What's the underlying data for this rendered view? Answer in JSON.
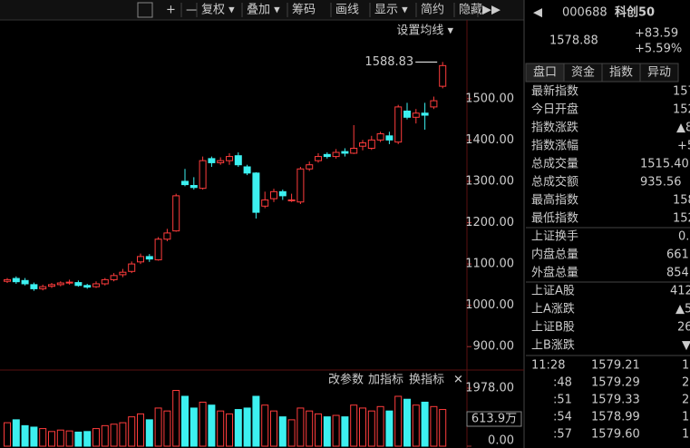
{
  "toolbar": {
    "items": [
      "+",
      "—",
      "复权 ▾",
      "叠加 ▾",
      "筹码",
      "画线",
      "显示 ▾",
      "简约",
      "隐藏",
      "▶▶"
    ]
  },
  "chart_data": {
    "type": "candlestick",
    "settings_label": "设置均线 ▾",
    "peak_label": 1588.83,
    "up_color": "#ff3c3c",
    "down_color": "#3cf0f0",
    "open": [
      1058,
      1065,
      1060,
      1050,
      1040,
      1046,
      1050,
      1054,
      1055,
      1048,
      1045,
      1052,
      1062,
      1074,
      1082,
      1105,
      1118,
      1110,
      1160,
      1180,
      1300,
      1290,
      1283,
      1355,
      1345,
      1350,
      1362,
      1335,
      1320,
      1240,
      1258,
      1275,
      1255,
      1250,
      1330,
      1350,
      1365,
      1360,
      1372,
      1368,
      1385,
      1380,
      1400,
      1410,
      1395,
      1470,
      1455,
      1465,
      1480,
      1530
    ],
    "high": [
      1066,
      1070,
      1066,
      1055,
      1050,
      1054,
      1058,
      1062,
      1060,
      1052,
      1058,
      1066,
      1078,
      1088,
      1106,
      1125,
      1124,
      1165,
      1185,
      1270,
      1330,
      1310,
      1360,
      1360,
      1358,
      1368,
      1370,
      1340,
      1322,
      1275,
      1282,
      1280,
      1270,
      1335,
      1348,
      1368,
      1370,
      1378,
      1380,
      1436,
      1400,
      1410,
      1420,
      1420,
      1485,
      1490,
      1475,
      1490,
      1505,
      1588.83
    ],
    "low": [
      1054,
      1052,
      1048,
      1035,
      1036,
      1042,
      1046,
      1050,
      1045,
      1040,
      1042,
      1048,
      1058,
      1068,
      1078,
      1100,
      1105,
      1108,
      1155,
      1178,
      1288,
      1280,
      1280,
      1335,
      1340,
      1340,
      1335,
      1315,
      1210,
      1235,
      1250,
      1255,
      1250,
      1245,
      1325,
      1345,
      1355,
      1355,
      1360,
      1366,
      1375,
      1376,
      1395,
      1390,
      1390,
      1450,
      1440,
      1425,
      1475,
      1525
    ],
    "close": [
      1062,
      1057,
      1052,
      1040,
      1045,
      1050,
      1054,
      1056,
      1048,
      1044,
      1052,
      1062,
      1072,
      1080,
      1100,
      1118,
      1112,
      1160,
      1175,
      1265,
      1292,
      1285,
      1350,
      1345,
      1350,
      1360,
      1340,
      1320,
      1225,
      1255,
      1275,
      1265,
      1255,
      1330,
      1340,
      1360,
      1360,
      1370,
      1368,
      1380,
      1393,
      1400,
      1415,
      1400,
      1480,
      1455,
      1465,
      1460,
      1495,
      1580
    ],
    "ylim": [
      850,
      1640
    ],
    "yticks": [
      {
        "value": 900,
        "label": "900.00"
      },
      {
        "value": 1000,
        "label": "1000.00"
      },
      {
        "value": 1100,
        "label": "1100.00"
      },
      {
        "value": 1200,
        "label": "1200.00"
      },
      {
        "value": 1300,
        "label": "1300.00"
      },
      {
        "value": 1400,
        "label": "1400.00"
      },
      {
        "value": 1500,
        "label": "1500.00"
      }
    ],
    "volume": [
      800,
      900,
      700,
      650,
      600,
      500,
      550,
      520,
      480,
      500,
      600,
      700,
      750,
      800,
      1000,
      1100,
      900,
      1300,
      1200,
      1900,
      1700,
      1300,
      1500,
      1400,
      1200,
      1100,
      1250,
      1300,
      1700,
      1400,
      1200,
      1000,
      900,
      1300,
      1200,
      1100,
      1000,
      1050,
      1000,
      1400,
      1300,
      1200,
      1350,
      1200,
      1700,
      1600,
      1400,
      1500,
      1350,
      1250
    ],
    "volume_ylim": [
      0,
      1978
    ],
    "volume_yticks": [
      {
        "value": 0,
        "label": "0.00"
      },
      {
        "value": 1978,
        "label": "1978.00"
      }
    ],
    "volume_current": "613.9万",
    "panel_buttons": [
      "改参数",
      "加指标",
      "换指标",
      "✕"
    ]
  },
  "quote": {
    "arrow": "◀",
    "code": "000688",
    "name": "科创50",
    "price": "1578.88",
    "change": "+83.59",
    "pct": "+5.59%"
  },
  "tabs": [
    "盘口",
    "资金",
    "指数",
    "异动"
  ],
  "rows": [
    [
      "最新指数",
      "157"
    ],
    [
      "今日开盘",
      "152"
    ],
    [
      "指数涨跌",
      "▲8"
    ],
    [
      "指数涨幅",
      "+5."
    ],
    [
      "总成交量",
      "1515.40"
    ],
    [
      "总成交额",
      "935.56"
    ],
    [
      "最高指数",
      "158"
    ],
    [
      "最低指数",
      "152"
    ],
    [
      "上证换手",
      "0."
    ],
    [
      "内盘总量",
      "661"
    ],
    [
      "外盘总量",
      "854"
    ],
    [
      "上证A股",
      "412"
    ],
    [
      "上A涨跌",
      "▲5"
    ],
    [
      "上证B股",
      "26"
    ],
    [
      "上B涨跌",
      "▼"
    ]
  ],
  "ticks": [
    [
      "11:28",
      "1579.21",
      "1"
    ],
    [
      ":48",
      "1579.29",
      "2"
    ],
    [
      ":51",
      "1579.33",
      "2"
    ],
    [
      ":54",
      "1578.99",
      "1"
    ],
    [
      ":57",
      "1579.60",
      "1"
    ]
  ]
}
